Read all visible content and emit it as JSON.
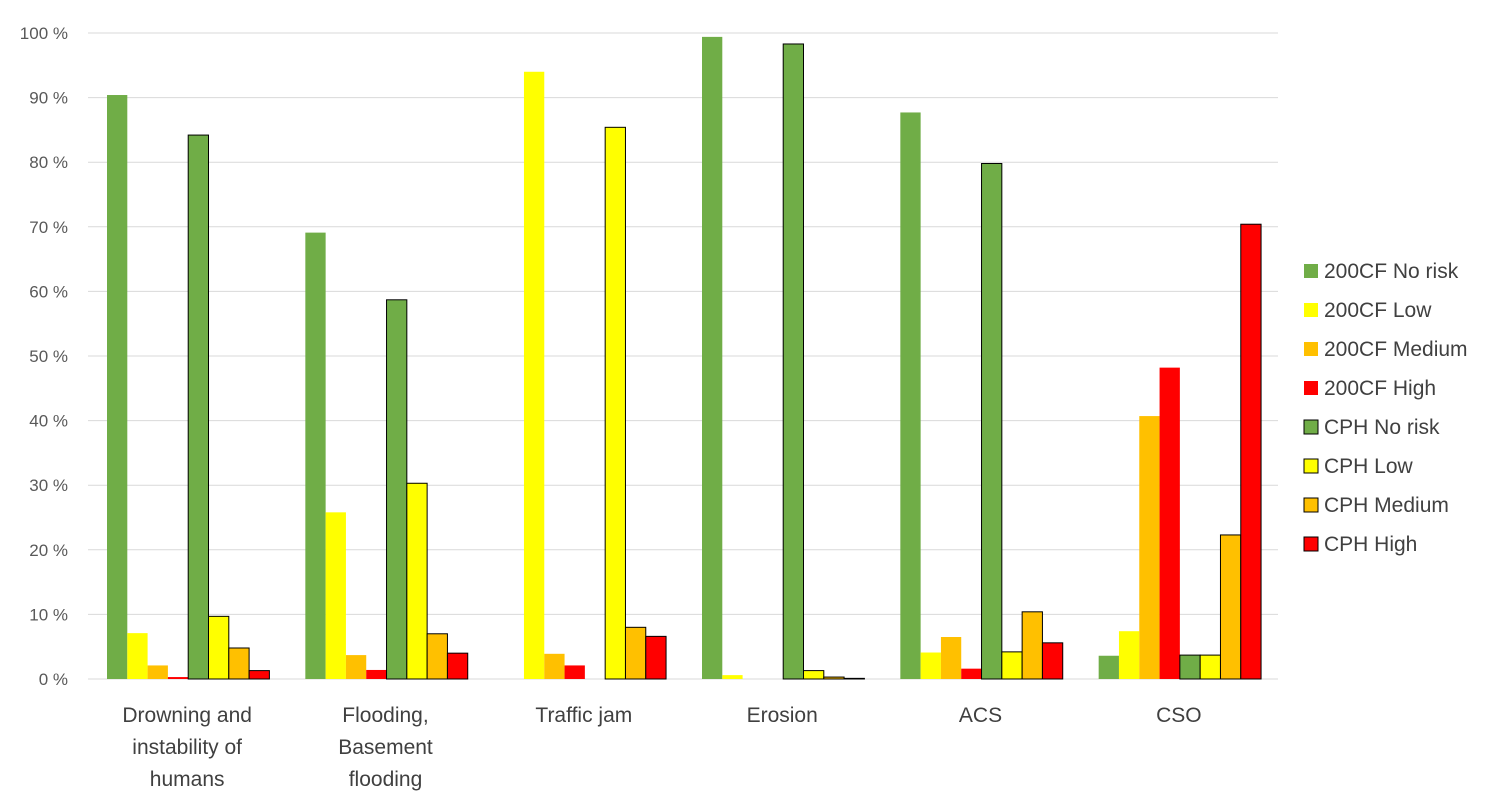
{
  "chart_data": {
    "type": "bar",
    "title": "",
    "xlabel": "",
    "ylabel": "",
    "ylim": [
      0,
      100
    ],
    "ytick_step": 10,
    "ytick_suffix": " %",
    "grid": true,
    "legend_position": "right",
    "categories": [
      [
        "Drowning and",
        "instability of",
        "humans"
      ],
      [
        "Flooding,",
        "Basement",
        "flooding"
      ],
      [
        "Traffic jam"
      ],
      [
        "Erosion"
      ],
      [
        "ACS"
      ],
      [
        "CSO"
      ]
    ],
    "series": [
      {
        "name": "200CF No risk",
        "color": "#70ad47",
        "outlined": false,
        "values": [
          90.4,
          69.1,
          0,
          99.4,
          87.7,
          3.6
        ]
      },
      {
        "name": "200CF Low",
        "color": "#ffff00",
        "outlined": false,
        "values": [
          7.1,
          25.8,
          94.0,
          0.6,
          4.1,
          7.4
        ]
      },
      {
        "name": "200CF Medium",
        "color": "#ffc000",
        "outlined": false,
        "values": [
          2.1,
          3.7,
          3.9,
          0,
          6.5,
          40.7
        ]
      },
      {
        "name": "200CF High",
        "color": "#ff0000",
        "outlined": false,
        "values": [
          0.3,
          1.4,
          2.1,
          0,
          1.6,
          48.2
        ]
      },
      {
        "name": "CPH No risk",
        "color": "#70ad47",
        "outlined": true,
        "values": [
          84.2,
          58.7,
          0,
          98.3,
          79.8,
          3.7
        ]
      },
      {
        "name": "CPH Low",
        "color": "#ffff00",
        "outlined": true,
        "values": [
          9.7,
          30.3,
          85.4,
          1.3,
          4.2,
          3.7
        ]
      },
      {
        "name": "CPH Medium",
        "color": "#ffc000",
        "outlined": true,
        "values": [
          4.8,
          7.0,
          8.0,
          0.3,
          10.4,
          22.3
        ]
      },
      {
        "name": "CPH High",
        "color": "#ff0000",
        "outlined": true,
        "values": [
          1.3,
          4.0,
          6.6,
          0.1,
          5.6,
          70.4
        ]
      }
    ]
  }
}
